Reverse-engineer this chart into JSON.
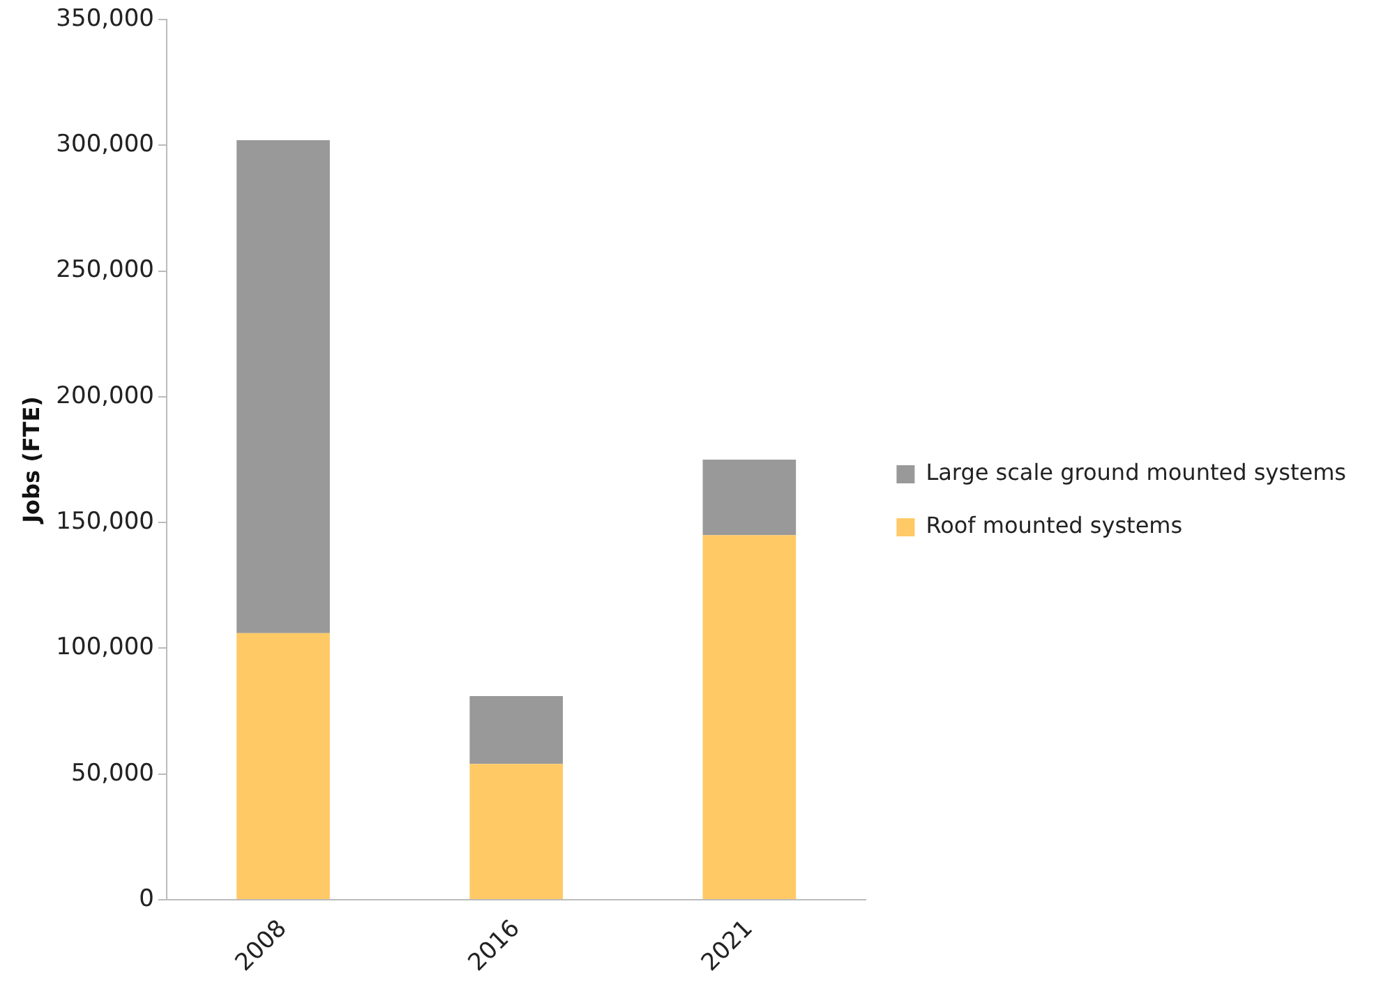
{
  "chart_data": {
    "type": "bar",
    "stacked": true,
    "ylabel": "Jobs (FTE)",
    "categories": [
      "2008",
      "2016",
      "2021"
    ],
    "series": [
      {
        "name": "Roof mounted systems",
        "color": "#ffc966",
        "values": [
          106000,
          54000,
          145000
        ]
      },
      {
        "name": "Large scale ground mounted systems",
        "color": "#999999",
        "values": [
          196000,
          27000,
          30000
        ]
      }
    ],
    "ylim": [
      0,
      350000
    ],
    "yticks": [
      0,
      {
        "value": 50000,
        "label": "50,000"
      },
      {
        "value": 100000,
        "label": "100,000"
      },
      {
        "value": 150000,
        "label": "150,000"
      },
      {
        "value": 200000,
        "label": "200,000"
      },
      {
        "value": 250000,
        "label": "250,000"
      },
      {
        "value": 300000,
        "label": "300,000"
      },
      {
        "value": 350000,
        "label": "350,000"
      }
    ],
    "grid": false,
    "legend": "right"
  }
}
